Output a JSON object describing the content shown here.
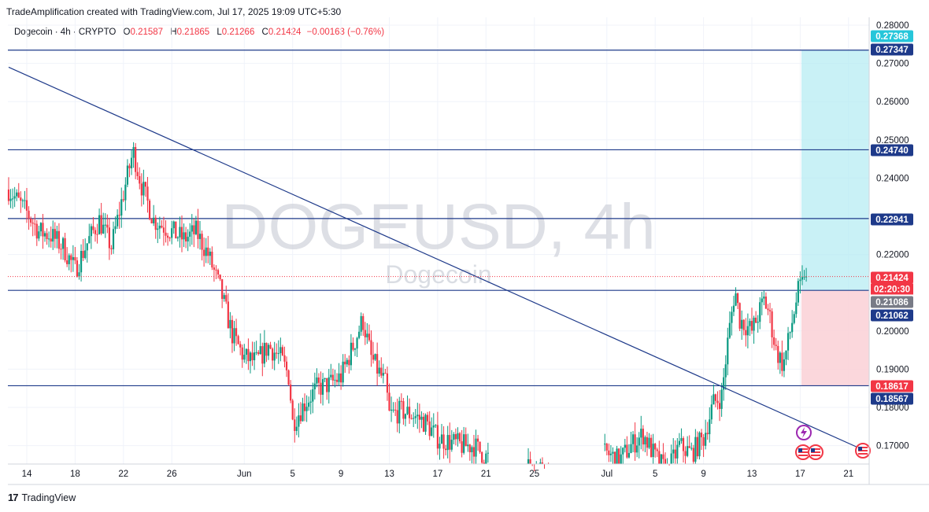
{
  "header": {
    "attribution": "TradeAmplification created with TradingView.com, Jul 17, 2025 19:09 UTC+5:30"
  },
  "legend": {
    "symbol": "Dogecoin · 4h · CRYPTO",
    "open_label": "O",
    "open": "0.21587",
    "high_label": "H",
    "high": "0.21865",
    "low_label": "L",
    "low": "0.21266",
    "close_label": "C",
    "close": "0.21424",
    "change": "−0.00163 (−0.76%)"
  },
  "watermark": {
    "title": "DOGEUSD, 4h",
    "subtitle": "Dogecoin"
  },
  "footer": {
    "brand": "TradingView"
  },
  "colors": {
    "up": "#089981",
    "down": "#f23645",
    "line": "#1e3a8a",
    "target_zone": "#b2ebf2",
    "stop_zone": "#fbd3d8",
    "tag_blue": "#1e3a8a",
    "tag_red": "#f23645",
    "tag_cyan": "#26c6da",
    "tag_gray": "#787b86"
  },
  "chart_data": {
    "type": "candlestick",
    "symbol": "DOGEUSD",
    "interval": "4h",
    "y_axis": {
      "range": [
        0.166,
        0.282
      ],
      "ticks": [
        "0.28000",
        "0.27000",
        "0.26000",
        "0.25000",
        "0.24000",
        "0.22000",
        "0.20000",
        "0.19000",
        "0.18000",
        "0.17000"
      ]
    },
    "x_axis": {
      "ticks": [
        {
          "label": "14",
          "day": 0
        },
        {
          "label": "18",
          "day": 4
        },
        {
          "label": "22",
          "day": 8
        },
        {
          "label": "26",
          "day": 12
        },
        {
          "label": "Jun",
          "day": 18
        },
        {
          "label": "5",
          "day": 22
        },
        {
          "label": "9",
          "day": 26
        },
        {
          "label": "13",
          "day": 30
        },
        {
          "label": "17",
          "day": 34
        },
        {
          "label": "21",
          "day": 38
        },
        {
          "label": "25",
          "day": 42
        },
        {
          "label": "Jul",
          "day": 48
        },
        {
          "label": "5",
          "day": 52
        },
        {
          "label": "9",
          "day": 56
        },
        {
          "label": "13",
          "day": 60
        },
        {
          "label": "17",
          "day": 64
        },
        {
          "label": "21",
          "day": 68
        }
      ]
    },
    "price_path": [
      [
        -1.5,
        0.237
      ],
      [
        0,
        0.231
      ],
      [
        1,
        0.226
      ],
      [
        2,
        0.225
      ],
      [
        3,
        0.222
      ],
      [
        4,
        0.216
      ],
      [
        5,
        0.223
      ],
      [
        6,
        0.229
      ],
      [
        7,
        0.222
      ],
      [
        8,
        0.236
      ],
      [
        8.8,
        0.247
      ],
      [
        9.5,
        0.238
      ],
      [
        10.5,
        0.229
      ],
      [
        12,
        0.226
      ],
      [
        13,
        0.224
      ],
      [
        14,
        0.226
      ],
      [
        15,
        0.22
      ],
      [
        16,
        0.211
      ],
      [
        17,
        0.199
      ],
      [
        18,
        0.193
      ],
      [
        19,
        0.192
      ],
      [
        20,
        0.196
      ],
      [
        21,
        0.193
      ],
      [
        21.7,
        0.188
      ],
      [
        22,
        0.176
      ],
      [
        23,
        0.181
      ],
      [
        24,
        0.185
      ],
      [
        25,
        0.186
      ],
      [
        26,
        0.188
      ],
      [
        27,
        0.196
      ],
      [
        27.8,
        0.203
      ],
      [
        28.5,
        0.193
      ],
      [
        29,
        0.19
      ],
      [
        29.7,
        0.186
      ],
      [
        30,
        0.178
      ],
      [
        31,
        0.179
      ],
      [
        32,
        0.178
      ],
      [
        33,
        0.176
      ],
      [
        34,
        0.172
      ],
      [
        35,
        0.171
      ],
      [
        36,
        0.17
      ],
      [
        37,
        0.17
      ],
      [
        38,
        0.167
      ],
      [
        40,
        0.165
      ],
      [
        44,
        0.164
      ],
      [
        46,
        0.166
      ],
      [
        48,
        0.168
      ],
      [
        49,
        0.166
      ],
      [
        50,
        0.17
      ],
      [
        51,
        0.173
      ],
      [
        52,
        0.167
      ],
      [
        53,
        0.163
      ],
      [
        54,
        0.17
      ],
      [
        55,
        0.168
      ],
      [
        56,
        0.172
      ],
      [
        56.8,
        0.181
      ],
      [
        57.5,
        0.183
      ],
      [
        58,
        0.197
      ],
      [
        58.6,
        0.211
      ],
      [
        59,
        0.203
      ],
      [
        60,
        0.2
      ],
      [
        61,
        0.208
      ],
      [
        61.4,
        0.205
      ],
      [
        62,
        0.195
      ],
      [
        62.6,
        0.191
      ],
      [
        63,
        0.197
      ],
      [
        63.8,
        0.21
      ],
      [
        64.5,
        0.214
      ]
    ],
    "current_price": 0.21424,
    "countdown": "02:20:30",
    "horizontal_levels": [
      0.27347,
      0.2474,
      0.22941,
      0.21062,
      0.18567
    ],
    "trendline": {
      "from": {
        "day": -1.5,
        "price": 0.269
      },
      "to": {
        "day": 69,
        "price": 0.1692
      }
    },
    "position_tool": {
      "entry": 0.21062,
      "target": 0.27347,
      "stop": 0.18567,
      "entry_label": "0.21086",
      "target_label": "0.27368",
      "stop_label": "0.18617"
    },
    "price_tags": [
      {
        "value": 0.27368,
        "label": "0.27368",
        "style": "cyan"
      },
      {
        "value": 0.27347,
        "label": "0.27347",
        "style": "blue"
      },
      {
        "value": 0.2474,
        "label": "0.24740",
        "style": "blue"
      },
      {
        "value": 0.22941,
        "label": "0.22941",
        "style": "blue"
      },
      {
        "value": 0.21424,
        "label": "0.21424",
        "style": "red"
      },
      {
        "value": 0.21086,
        "label": "0.21086",
        "style": "gray"
      },
      {
        "value": 0.21062,
        "label": "0.21062",
        "style": "blue"
      },
      {
        "value": 0.18617,
        "label": "0.18617",
        "style": "red"
      },
      {
        "value": 0.18567,
        "label": "0.18567",
        "style": "blue"
      }
    ]
  }
}
